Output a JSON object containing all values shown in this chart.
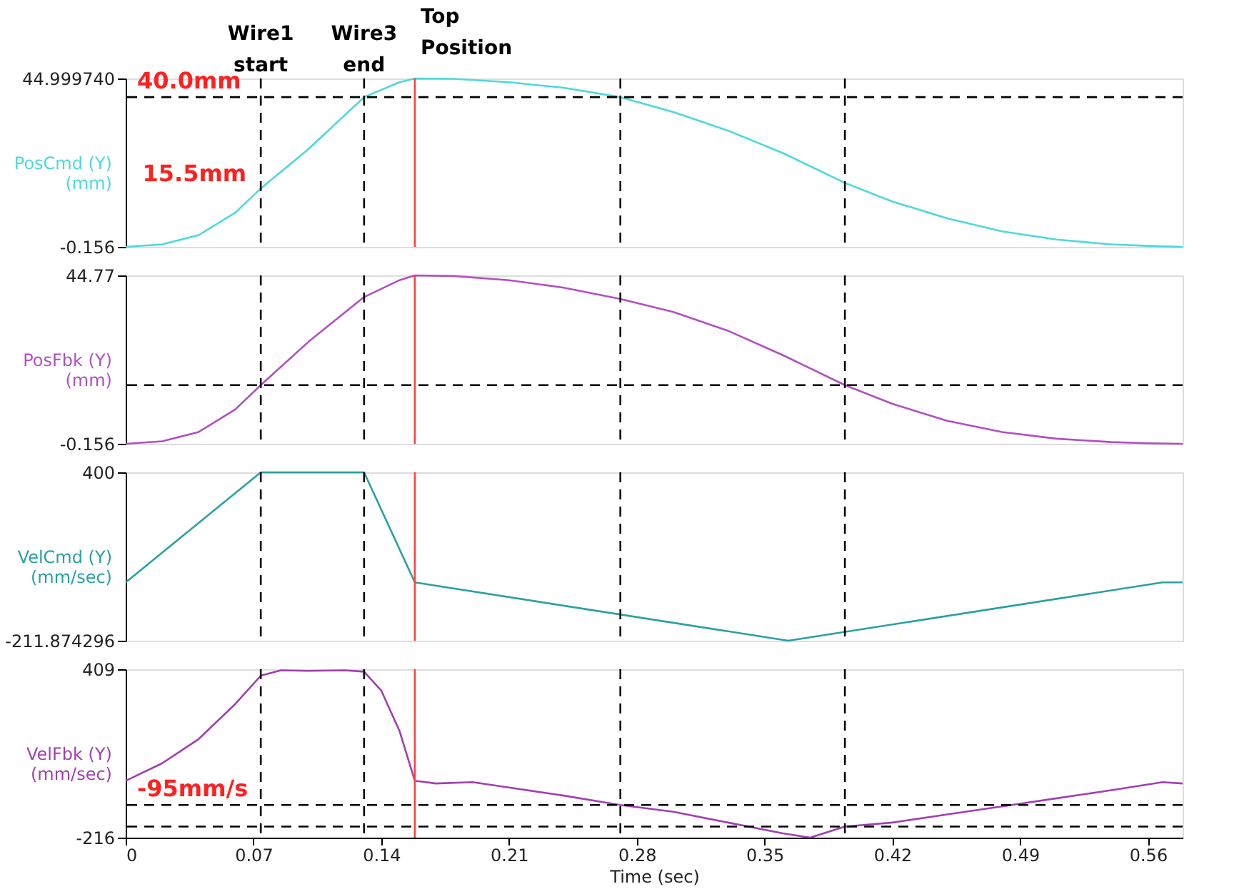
{
  "chart_data": [
    {
      "type": "line",
      "ylabel": "PosCmd (Y)\n(mm)",
      "x": [
        0,
        0.02,
        0.04,
        0.06,
        0.074,
        0.1,
        0.1306,
        0.15,
        0.1584,
        0.18,
        0.21,
        0.24,
        0.271,
        0.3,
        0.33,
        0.36,
        0.394,
        0.42,
        0.45,
        0.48,
        0.51,
        0.54,
        0.56,
        0.579
      ],
      "series": [
        {
          "color": "#4dd9d9",
          "values": [
            -0.156,
            0.5,
            3,
            9,
            15.5,
            26,
            40,
            44,
            44.99974,
            44.9,
            44,
            42.5,
            40,
            36,
            31,
            25,
            17,
            12,
            7.5,
            4,
            1.8,
            0.5,
            0.1,
            -0.156
          ]
        }
      ],
      "xlim": [
        0,
        0.579
      ],
      "ylim": [
        -0.156,
        44.99974
      ],
      "yticks": [
        {
          "value": 44.99974,
          "label": "44.999740"
        },
        -0.156
      ],
      "tick_labels": "y",
      "grid": false,
      "ref_lines": [
        {
          "axis": "y",
          "value": 40,
          "color": "#000000",
          "line_style": "dashed",
          "label": "40.0mm"
        },
        {
          "axis": "x",
          "value": 0.074,
          "color": "#000000",
          "line_style": "dashed",
          "label": "Wire1\nstart"
        },
        {
          "axis": "x",
          "value": 0.1306,
          "color": "#000000",
          "line_style": "dashed",
          "label": "Wire3\nend"
        },
        {
          "axis": "x",
          "value": 0.271,
          "color": "#000000",
          "line_style": "dashed"
        },
        {
          "axis": "x",
          "value": 0.394,
          "color": "#000000",
          "line_style": "dashed"
        },
        {
          "axis": "x",
          "value": 0.1584,
          "color": "#ff4040",
          "line_style": "solid",
          "label": "Top\nPosition"
        }
      ],
      "annotations": [
        {
          "text": "15.5mm",
          "x": 0.074,
          "y": 15.5
        }
      ]
    },
    {
      "type": "line",
      "ylabel": "PosFbk (Y)\n(mm)",
      "x": [
        0,
        0.02,
        0.04,
        0.06,
        0.074,
        0.1,
        0.1306,
        0.15,
        0.1584,
        0.18,
        0.21,
        0.24,
        0.271,
        0.3,
        0.33,
        0.36,
        0.394,
        0.42,
        0.45,
        0.48,
        0.51,
        0.54,
        0.56,
        0.579
      ],
      "series": [
        {
          "color": "#b050c0",
          "values": [
            -0.156,
            0.5,
            3,
            9,
            15.5,
            27,
            39,
            43.5,
            44.77,
            44.6,
            43.5,
            41.5,
            38.5,
            35,
            30,
            23.5,
            15.5,
            10.5,
            6,
            3,
            1.2,
            0.3,
            0,
            -0.156
          ]
        }
      ],
      "xlim": [
        0,
        0.579
      ],
      "ylim": [
        -0.156,
        44.77
      ],
      "yticks": [
        44.77,
        -0.156
      ],
      "tick_labels": "y",
      "grid": false,
      "ref_lines": [
        {
          "axis": "y",
          "value": 15.5,
          "color": "#000000",
          "line_style": "dashed"
        },
        {
          "axis": "x",
          "value": 0.074,
          "color": "#000000",
          "line_style": "dashed"
        },
        {
          "axis": "x",
          "value": 0.1306,
          "color": "#000000",
          "line_style": "dashed"
        },
        {
          "axis": "x",
          "value": 0.271,
          "color": "#000000",
          "line_style": "dashed"
        },
        {
          "axis": "x",
          "value": 0.394,
          "color": "#000000",
          "line_style": "dashed"
        },
        {
          "axis": "x",
          "value": 0.1584,
          "color": "#ff4040",
          "line_style": "solid"
        }
      ]
    },
    {
      "type": "line",
      "ylabel": "VelCmd (Y)\n(mm/sec)",
      "x": [
        0,
        0.074,
        0.1306,
        0.1584,
        0.363,
        0.568,
        0.579
      ],
      "series": [
        {
          "color": "#2aa0a0",
          "values": [
            0,
            400,
            400,
            0,
            -211.874296,
            0,
            0
          ]
        }
      ],
      "xlim": [
        0,
        0.579
      ],
      "ylim": [
        -211.874296,
        400
      ],
      "yticks": [
        400,
        -211.874296
      ],
      "tick_labels": "y",
      "grid": false,
      "ref_lines": [
        {
          "axis": "x",
          "value": 0.074,
          "color": "#000000",
          "line_style": "dashed"
        },
        {
          "axis": "x",
          "value": 0.1306,
          "color": "#000000",
          "line_style": "dashed"
        },
        {
          "axis": "x",
          "value": 0.271,
          "color": "#000000",
          "line_style": "dashed"
        },
        {
          "axis": "x",
          "value": 0.394,
          "color": "#000000",
          "line_style": "dashed"
        },
        {
          "axis": "x",
          "value": 0.1584,
          "color": "#ff4040",
          "line_style": "solid"
        }
      ]
    },
    {
      "type": "line",
      "ylabel": "VelFbk (Y)\n(mm/sec)",
      "xlabel": "Time (sec)",
      "x": [
        0,
        0.02,
        0.04,
        0.06,
        0.074,
        0.085,
        0.1,
        0.12,
        0.1306,
        0.14,
        0.15,
        0.1584,
        0.17,
        0.19,
        0.21,
        0.24,
        0.271,
        0.3,
        0.33,
        0.36,
        0.375,
        0.394,
        0.42,
        0.45,
        0.48,
        0.51,
        0.54,
        0.568,
        0.579
      ],
      "series": [
        {
          "color": "#a040b0",
          "values": [
            -5,
            60,
            150,
            280,
            385,
            405,
            403,
            405,
            400,
            330,
            180,
            -5,
            -15,
            -10,
            -30,
            -60,
            -95,
            -120,
            -160,
            -200,
            -216,
            -175,
            -160,
            -130,
            -100,
            -70,
            -40,
            -10,
            -15
          ]
        }
      ],
      "xlim": [
        0,
        0.579
      ],
      "xticks": [
        0,
        0.07,
        0.14,
        0.21,
        0.28,
        0.35,
        0.42,
        0.49,
        0.56
      ],
      "ylim": [
        -216,
        409
      ],
      "yticks": [
        409,
        -216
      ],
      "grid": false,
      "ref_lines": [
        {
          "axis": "y",
          "value": -95,
          "color": "#000000",
          "line_style": "dashed",
          "label": "-95mm/s"
        },
        {
          "axis": "y",
          "value": -175,
          "color": "#000000",
          "line_style": "dashed"
        },
        {
          "axis": "x",
          "value": 0.074,
          "color": "#000000",
          "line_style": "dashed"
        },
        {
          "axis": "x",
          "value": 0.1306,
          "color": "#000000",
          "line_style": "dashed"
        },
        {
          "axis": "x",
          "value": 0.271,
          "color": "#000000",
          "line_style": "dashed"
        },
        {
          "axis": "x",
          "value": 0.394,
          "color": "#000000",
          "line_style": "dashed"
        },
        {
          "axis": "x",
          "value": 0.1584,
          "color": "#ff4040",
          "line_style": "solid"
        }
      ]
    }
  ]
}
